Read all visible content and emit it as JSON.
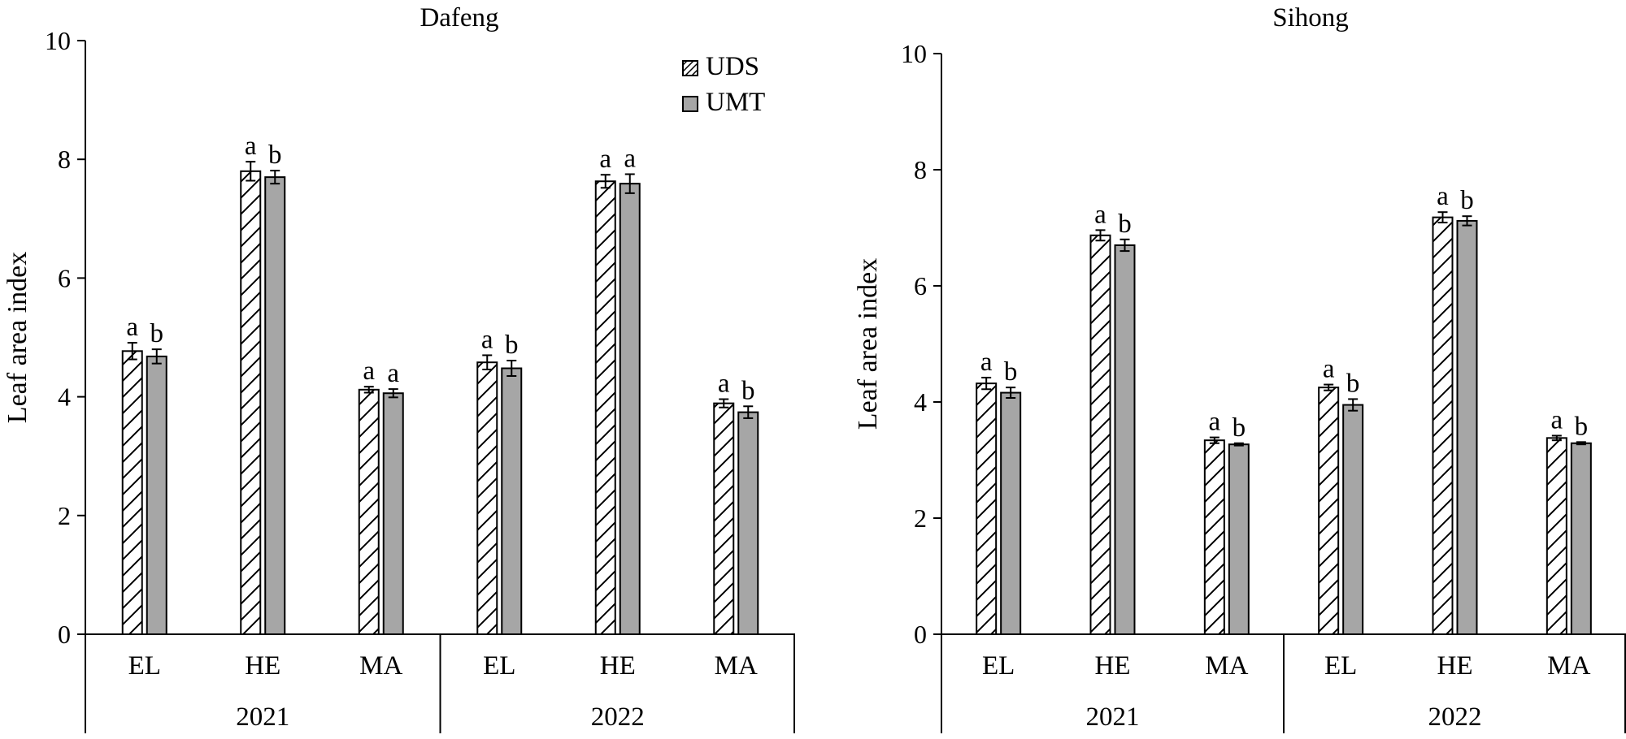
{
  "chart_data": [
    {
      "type": "bar",
      "title": "Dafeng",
      "ylabel": "Leaf area index",
      "xlabel": "",
      "ylim": [
        0,
        10
      ],
      "yticks": [
        0,
        2,
        4,
        6,
        8,
        10
      ],
      "groups": [
        "2021",
        "2022"
      ],
      "categories": [
        "EL",
        "HE",
        "MA",
        "EL",
        "HE",
        "MA"
      ],
      "legend": {
        "placement": "top-right",
        "entries": [
          "UDS",
          "UMT"
        ]
      },
      "series": [
        {
          "name": "UDS",
          "color": "#ffffff",
          "pattern": "hatch",
          "values": [
            4.77,
            7.8,
            4.12,
            4.58,
            7.63,
            3.89
          ],
          "errors": [
            0.14,
            0.16,
            0.05,
            0.12,
            0.11,
            0.07
          ],
          "labels": [
            "a",
            "a",
            "a",
            "a",
            "a",
            "a"
          ]
        },
        {
          "name": "UMT",
          "color": "#a6a6a6",
          "pattern": "solid",
          "values": [
            4.68,
            7.7,
            4.06,
            4.48,
            7.59,
            3.74
          ],
          "errors": [
            0.12,
            0.11,
            0.07,
            0.13,
            0.16,
            0.1
          ],
          "labels": [
            "b",
            "b",
            "a",
            "b",
            "a",
            "b"
          ]
        }
      ],
      "grid": false
    },
    {
      "type": "bar",
      "title": "Sihong",
      "ylabel": "Leaf area index",
      "xlabel": "",
      "ylim": [
        0,
        10
      ],
      "yticks": [
        0,
        2,
        4,
        6,
        8,
        10
      ],
      "groups": [
        "2021",
        "2022"
      ],
      "categories": [
        "EL",
        "HE",
        "MA",
        "EL",
        "HE",
        "MA"
      ],
      "series": [
        {
          "name": "UDS",
          "color": "#ffffff",
          "pattern": "hatch",
          "values": [
            4.32,
            6.87,
            3.34,
            4.25,
            7.18,
            3.38
          ],
          "errors": [
            0.1,
            0.09,
            0.05,
            0.05,
            0.09,
            0.04
          ],
          "labels": [
            "a",
            "a",
            "a",
            "a",
            "a",
            "a"
          ]
        },
        {
          "name": "UMT",
          "color": "#a6a6a6",
          "pattern": "solid",
          "values": [
            4.16,
            6.7,
            3.27,
            3.95,
            7.12,
            3.29
          ],
          "errors": [
            0.09,
            0.1,
            0.02,
            0.1,
            0.08,
            0.02
          ],
          "labels": [
            "b",
            "b",
            "b",
            "b",
            "b",
            "b"
          ]
        }
      ],
      "grid": false
    }
  ]
}
